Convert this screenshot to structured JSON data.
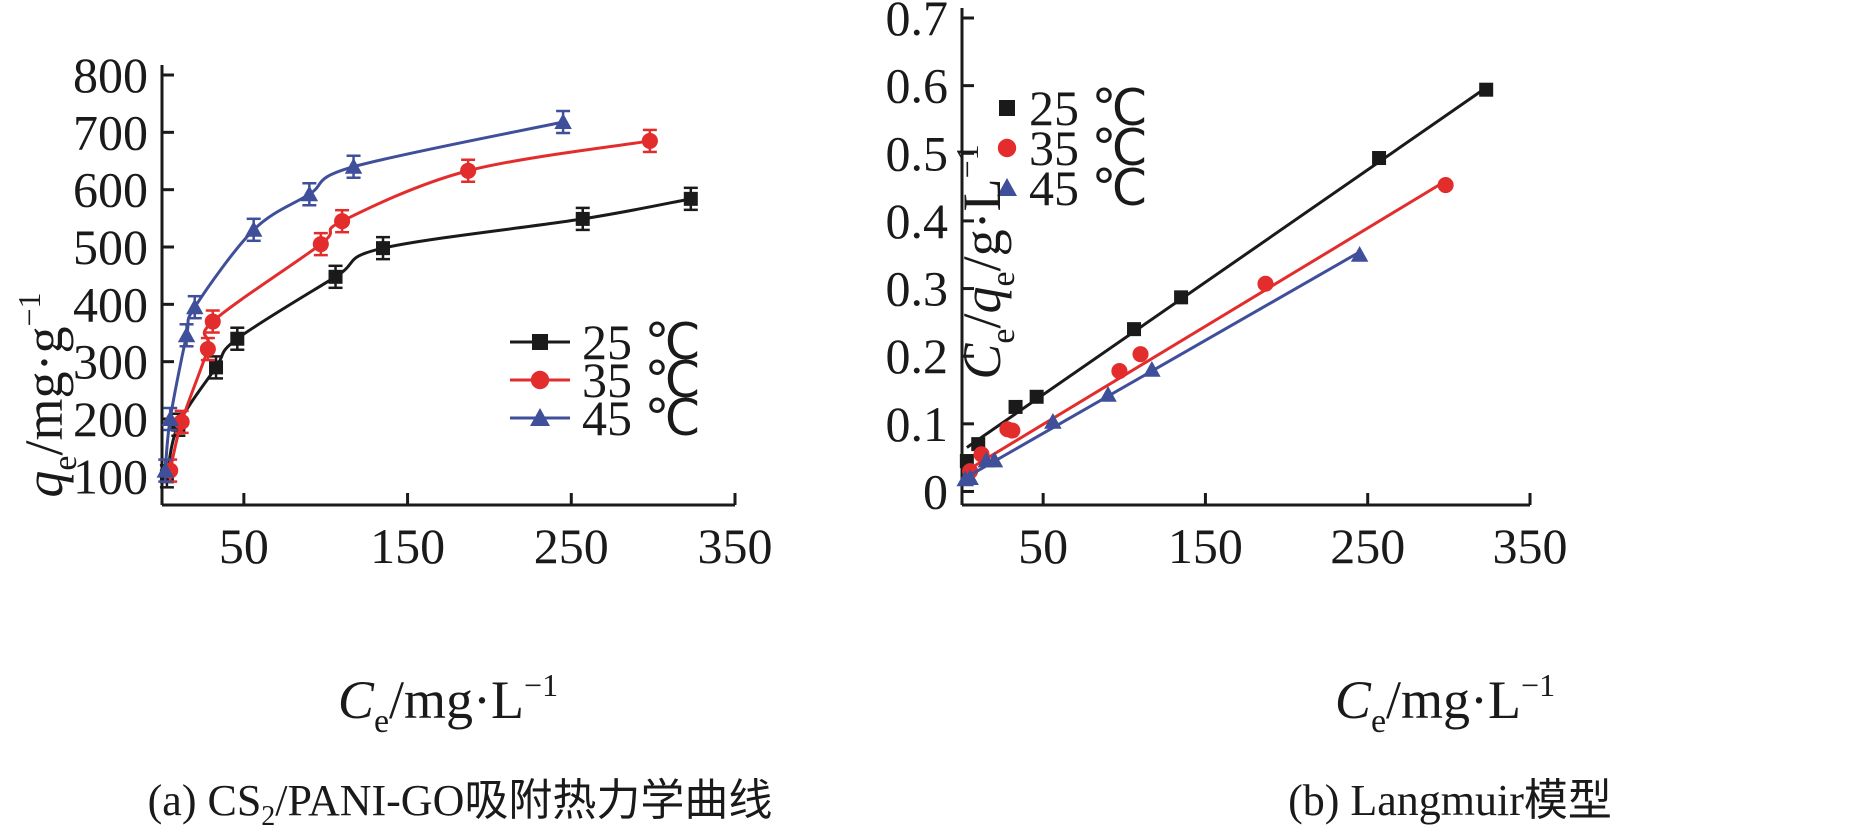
{
  "colors": {
    "s25": "#1a1a1a",
    "s35": "#e32d2d",
    "s45": "#3f4f9a"
  },
  "chart_data": [
    {
      "type": "line",
      "panel": "a",
      "caption_pre": "(a) CS",
      "caption_sub": "2",
      "caption_post": "/PANI-GO吸附热力学曲线",
      "xlabel": {
        "sym": "C",
        "sub": "e",
        "unit": "/mg·L",
        "sup": "−1"
      },
      "ylabel": {
        "sym": "q",
        "sub": "e",
        "unit": "/mg·g",
        "sup": "−1"
      },
      "xlim": [
        0,
        350
      ],
      "ylim": [
        50,
        800
      ],
      "xticks": [
        50,
        150,
        250,
        350
      ],
      "yticks": [
        100,
        200,
        300,
        400,
        500,
        600,
        700,
        800
      ],
      "legend_position": "middle-right",
      "series": [
        {
          "name": "25 ℃",
          "marker": "square",
          "color_key": "s25",
          "x": [
            3,
            10,
            33,
            46,
            106,
            135,
            257,
            323
          ],
          "y": [
            100,
            190,
            290,
            340,
            448,
            498,
            549,
            584
          ]
        },
        {
          "name": "35 ℃",
          "marker": "circle",
          "color_key": "s35",
          "x": [
            5,
            12,
            28,
            31,
            97,
            110,
            187,
            298
          ],
          "y": [
            110,
            195,
            322,
            370,
            505,
            545,
            633,
            685
          ]
        },
        {
          "name": "45 ℃",
          "marker": "triangle",
          "color_key": "s45",
          "x": [
            2,
            5,
            15,
            20,
            56,
            90,
            117,
            245
          ],
          "y": [
            110,
            200,
            346,
            395,
            530,
            592,
            640,
            718
          ]
        }
      ]
    },
    {
      "type": "scatter",
      "panel": "b",
      "caption": "(b) Langmuir模型",
      "xlabel": {
        "sym": "C",
        "sub": "e",
        "unit": "/mg·L",
        "sup": "−1"
      },
      "ylabel": {
        "sym": "C",
        "sub1": "e",
        "slash": "/",
        "sym2": "q",
        "sub2": "e",
        "unit": "/g·L",
        "sup": "−1"
      },
      "xlim": [
        0,
        350
      ],
      "ylim": [
        -0.02,
        0.7
      ],
      "xticks": [
        50,
        150,
        250,
        350
      ],
      "yticks": [
        0,
        0.1,
        0.2,
        0.3,
        0.4,
        0.5,
        0.6,
        0.7
      ],
      "ytick_labels": [
        "0",
        "0.1",
        "0.2",
        "0.3",
        "0.4",
        "0.5",
        "0.6",
        "0.7"
      ],
      "legend_position": "top-left",
      "series": [
        {
          "name": "25 ℃",
          "marker": "square",
          "color_key": "s25",
          "x": [
            3,
            10,
            33,
            46,
            106,
            135,
            257,
            323
          ],
          "y": [
            0.045,
            0.07,
            0.125,
            0.14,
            0.24,
            0.287,
            0.493,
            0.594
          ],
          "fit": [
            [
              3,
              0.065
            ],
            [
              323,
              0.597
            ]
          ]
        },
        {
          "name": "35 ℃",
          "marker": "circle",
          "color_key": "s35",
          "x": [
            5,
            12,
            28,
            31,
            97,
            110,
            187,
            298
          ],
          "y": [
            0.03,
            0.055,
            0.092,
            0.09,
            0.178,
            0.203,
            0.307,
            0.453
          ],
          "fit": [
            [
              5,
              0.034
            ],
            [
              298,
              0.459
            ]
          ]
        },
        {
          "name": "45 ℃",
          "marker": "triangle",
          "color_key": "s45",
          "x": [
            2,
            5,
            15,
            20,
            56,
            90,
            117,
            245
          ],
          "y": [
            0.018,
            0.02,
            0.046,
            0.046,
            0.103,
            0.143,
            0.18,
            0.35
          ],
          "fit": [
            [
              2,
              0.02
            ],
            [
              245,
              0.354
            ]
          ]
        }
      ]
    }
  ]
}
